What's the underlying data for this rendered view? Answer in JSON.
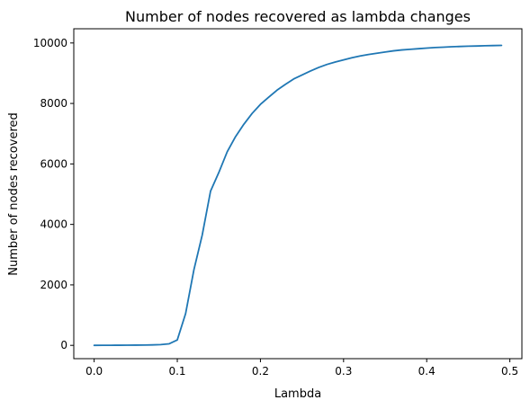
{
  "chart_data": {
    "type": "line",
    "title": "Number of nodes recovered as lambda changes",
    "xlabel": "Lambda",
    "ylabel": "Number of nodes recovered",
    "xlim": [
      -0.0245,
      0.5145
    ],
    "ylim": [
      -440,
      10470
    ],
    "xticks": [
      0.0,
      0.1,
      0.2,
      0.3,
      0.4,
      0.5
    ],
    "xtick_labels": [
      "0.0",
      "0.1",
      "0.2",
      "0.3",
      "0.4",
      "0.5"
    ],
    "yticks": [
      0,
      2000,
      4000,
      6000,
      8000,
      10000
    ],
    "ytick_labels": [
      "0",
      "2000",
      "4000",
      "6000",
      "8000",
      "10000"
    ],
    "grid": false,
    "legend": "none",
    "series": [
      {
        "color": "#1f77b4",
        "x": [
          0.0,
          0.01,
          0.02,
          0.03,
          0.04,
          0.05,
          0.06,
          0.07,
          0.08,
          0.09,
          0.1,
          0.11,
          0.12,
          0.13,
          0.14,
          0.15,
          0.16,
          0.17,
          0.18,
          0.19,
          0.2,
          0.21,
          0.22,
          0.23,
          0.24,
          0.25,
          0.26,
          0.27,
          0.28,
          0.29,
          0.3,
          0.31,
          0.32,
          0.33,
          0.34,
          0.35,
          0.36,
          0.37,
          0.38,
          0.39,
          0.4,
          0.41,
          0.42,
          0.43,
          0.44,
          0.45,
          0.46,
          0.47,
          0.48,
          0.49
        ],
        "y": [
          0,
          2,
          3,
          4,
          5,
          7,
          10,
          15,
          25,
          50,
          180,
          1050,
          2500,
          3650,
          5100,
          5720,
          6400,
          6900,
          7310,
          7670,
          7970,
          8210,
          8440,
          8630,
          8810,
          8940,
          9070,
          9190,
          9290,
          9370,
          9440,
          9510,
          9570,
          9620,
          9660,
          9700,
          9740,
          9770,
          9790,
          9810,
          9830,
          9850,
          9860,
          9875,
          9885,
          9895,
          9900,
          9910,
          9915,
          9920
        ]
      }
    ]
  }
}
